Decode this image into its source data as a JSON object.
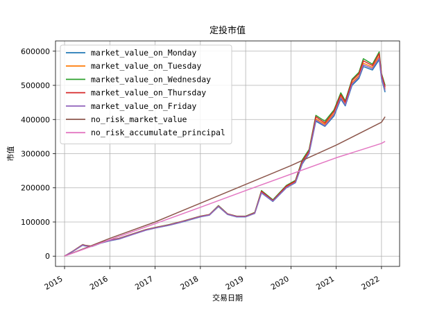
{
  "chart_data": {
    "type": "line",
    "title": "定投市值",
    "xlabel": "交易日期",
    "ylabel": "市值",
    "xlim": [
      2014.8,
      2022.4
    ],
    "ylim": [
      -30000,
      630000
    ],
    "xticks": [
      "2015",
      "2016",
      "2017",
      "2018",
      "2019",
      "2020",
      "2021",
      "2022"
    ],
    "yticks": [
      0,
      100000,
      200000,
      300000,
      400000,
      500000,
      600000
    ],
    "grid": true,
    "legend_position": "upper-left",
    "series": [
      {
        "name": "market_value_on_Monday",
        "color": "#1f77b4",
        "x": [
          2015.0,
          2015.2,
          2015.4,
          2015.45,
          2015.6,
          2015.8,
          2016.0,
          2016.2,
          2016.5,
          2016.8,
          2017.0,
          2017.3,
          2017.6,
          2018.0,
          2018.2,
          2018.4,
          2018.6,
          2018.8,
          2019.0,
          2019.2,
          2019.35,
          2019.6,
          2019.9,
          2020.1,
          2020.25,
          2020.4,
          2020.55,
          2020.75,
          2020.95,
          2021.1,
          2021.2,
          2021.35,
          2021.5,
          2021.6,
          2021.8,
          2021.95,
          2022.0,
          2022.08
        ],
        "values": [
          0,
          15000,
          32000,
          30000,
          28000,
          38000,
          45000,
          50000,
          63000,
          76000,
          82000,
          90000,
          100000,
          115000,
          120000,
          145000,
          122000,
          115000,
          115000,
          125000,
          185000,
          160000,
          200000,
          215000,
          270000,
          300000,
          395000,
          380000,
          410000,
          460000,
          440000,
          500000,
          520000,
          555000,
          545000,
          575000,
          520000,
          480000
        ]
      },
      {
        "name": "market_value_on_Tuesday",
        "color": "#ff7f0e",
        "x": [
          2015.0,
          2015.2,
          2015.4,
          2015.45,
          2015.6,
          2015.8,
          2016.0,
          2016.2,
          2016.5,
          2016.8,
          2017.0,
          2017.3,
          2017.6,
          2018.0,
          2018.2,
          2018.4,
          2018.6,
          2018.8,
          2019.0,
          2019.2,
          2019.35,
          2019.6,
          2019.9,
          2020.1,
          2020.25,
          2020.4,
          2020.55,
          2020.75,
          2020.95,
          2021.1,
          2021.2,
          2021.35,
          2021.5,
          2021.6,
          2021.8,
          2021.95,
          2022.0,
          2022.08
        ],
        "values": [
          0,
          15500,
          33000,
          31000,
          28500,
          39000,
          46000,
          51000,
          64000,
          77000,
          83000,
          91000,
          101000,
          116000,
          121000,
          146000,
          123000,
          116000,
          116000,
          126000,
          188000,
          162000,
          203000,
          218000,
          275000,
          305000,
          402000,
          386000,
          418000,
          468000,
          447000,
          508000,
          528000,
          565000,
          553000,
          585000,
          528000,
          490000
        ]
      },
      {
        "name": "market_value_on_Wednesday",
        "color": "#2ca02c",
        "x": [
          2015.0,
          2015.2,
          2015.4,
          2015.45,
          2015.6,
          2015.8,
          2016.0,
          2016.2,
          2016.5,
          2016.8,
          2017.0,
          2017.3,
          2017.6,
          2018.0,
          2018.2,
          2018.4,
          2018.6,
          2018.8,
          2019.0,
          2019.2,
          2019.35,
          2019.6,
          2019.9,
          2020.1,
          2020.25,
          2020.4,
          2020.55,
          2020.75,
          2020.95,
          2021.1,
          2021.2,
          2021.35,
          2021.5,
          2021.6,
          2021.8,
          2021.95,
          2022.0,
          2022.08
        ],
        "values": [
          0,
          16000,
          34000,
          32000,
          29000,
          40000,
          47000,
          52000,
          65000,
          78000,
          84000,
          92000,
          102000,
          117000,
          122000,
          148000,
          124000,
          117000,
          117000,
          128000,
          192000,
          165000,
          207000,
          222000,
          282000,
          312000,
          412000,
          395000,
          428000,
          478000,
          455000,
          518000,
          538000,
          578000,
          562000,
          598000,
          535000,
          500000
        ]
      },
      {
        "name": "market_value_on_Thursday",
        "color": "#d62728",
        "x": [
          2015.0,
          2015.2,
          2015.4,
          2015.45,
          2015.6,
          2015.8,
          2016.0,
          2016.2,
          2016.5,
          2016.8,
          2017.0,
          2017.3,
          2017.6,
          2018.0,
          2018.2,
          2018.4,
          2018.6,
          2018.8,
          2019.0,
          2019.2,
          2019.35,
          2019.6,
          2019.9,
          2020.1,
          2020.25,
          2020.4,
          2020.55,
          2020.75,
          2020.95,
          2021.1,
          2021.2,
          2021.35,
          2021.5,
          2021.6,
          2021.8,
          2021.95,
          2022.0,
          2022.08
        ],
        "values": [
          0,
          15800,
          33500,
          31500,
          28800,
          39500,
          46500,
          51500,
          64500,
          77500,
          83500,
          91500,
          101500,
          116500,
          121500,
          147000,
          123500,
          116500,
          116500,
          127000,
          190000,
          163000,
          205000,
          220000,
          278000,
          308000,
          408000,
          390000,
          424000,
          473000,
          451000,
          514000,
          534000,
          572000,
          558000,
          593000,
          532000,
          495000
        ]
      },
      {
        "name": "market_value_on_Friday",
        "color": "#9467bd",
        "x": [
          2015.0,
          2015.2,
          2015.4,
          2015.45,
          2015.6,
          2015.8,
          2016.0,
          2016.2,
          2016.5,
          2016.8,
          2017.0,
          2017.3,
          2017.6,
          2018.0,
          2018.2,
          2018.4,
          2018.6,
          2018.8,
          2019.0,
          2019.2,
          2019.35,
          2019.6,
          2019.9,
          2020.1,
          2020.25,
          2020.4,
          2020.55,
          2020.75,
          2020.95,
          2021.1,
          2021.2,
          2021.35,
          2021.5,
          2021.6,
          2021.8,
          2021.95,
          2022.0,
          2022.08
        ],
        "values": [
          0,
          15200,
          32500,
          30500,
          28200,
          38500,
          45500,
          50500,
          63500,
          76500,
          82500,
          90500,
          100500,
          115500,
          120500,
          146000,
          122500,
          115500,
          115500,
          125500,
          186000,
          161000,
          201000,
          216000,
          272000,
          302000,
          398000,
          382000,
          414000,
          464000,
          443000,
          504000,
          524000,
          560000,
          549000,
          580000,
          524000,
          485000
        ]
      },
      {
        "name": "no_risk_market_value",
        "color": "#8c564b",
        "x": [
          2015.0,
          2016.0,
          2017.0,
          2018.0,
          2019.0,
          2020.0,
          2021.0,
          2022.0,
          2022.08
        ],
        "values": [
          0,
          52000,
          100000,
          155000,
          210000,
          265000,
          325000,
          392000,
          408000
        ]
      },
      {
        "name": "no_risk_accumulate_principal",
        "color": "#e377c2",
        "x": [
          2015.0,
          2016.0,
          2017.0,
          2018.0,
          2019.0,
          2020.0,
          2021.0,
          2022.0,
          2022.08
        ],
        "values": [
          0,
          48000,
          95000,
          143000,
          192000,
          240000,
          288000,
          330000,
          336000
        ]
      }
    ]
  }
}
